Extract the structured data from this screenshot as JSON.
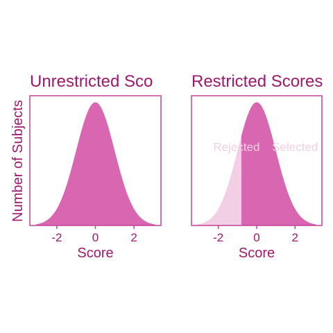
{
  "colors": {
    "frame": "#c2409a",
    "text": "#a0186e",
    "fill": "#d966b0",
    "fill_light": "#f2cfe4",
    "background": "#ffffff"
  },
  "shared_ylabel": "Number of Subjects",
  "chart_data": [
    {
      "type": "area",
      "title": "Unrestricted Sco",
      "xlabel": "Score",
      "ylabel": "Number of Subjects",
      "xlim": [
        -3.4,
        3.4
      ],
      "ylim": [
        0,
        0.42
      ],
      "xticks": [
        -2,
        0,
        2
      ],
      "xtick_labels": [
        "-2",
        "0",
        "2"
      ],
      "grid": false,
      "density": "standard normal",
      "series": [
        {
          "x_range": [
            -3.1,
            3.1
          ],
          "fill": "#d966b0"
        }
      ]
    },
    {
      "type": "area",
      "title": "Restricted Scores",
      "xlabel": "Score",
      "xlim": [
        -3.4,
        3.4
      ],
      "ylim": [
        0,
        0.42
      ],
      "xticks": [
        -2,
        0,
        2
      ],
      "xtick_labels": [
        "-2",
        "0",
        "2"
      ],
      "grid": false,
      "density": "standard normal",
      "cutoff": -0.8,
      "series": [
        {
          "x_range": [
            -3.1,
            -0.8
          ],
          "fill": "#f2cfe4"
        },
        {
          "x_range": [
            -0.8,
            3.1
          ],
          "fill": "#d966b0"
        }
      ],
      "annotations": [
        {
          "text": "Rejected",
          "x": -1.05,
          "y": 0.255,
          "color": "#f2cfe4"
        },
        {
          "text": "Selected",
          "x": 2.0,
          "y": 0.255,
          "color": "#f2cfe4"
        }
      ]
    }
  ]
}
